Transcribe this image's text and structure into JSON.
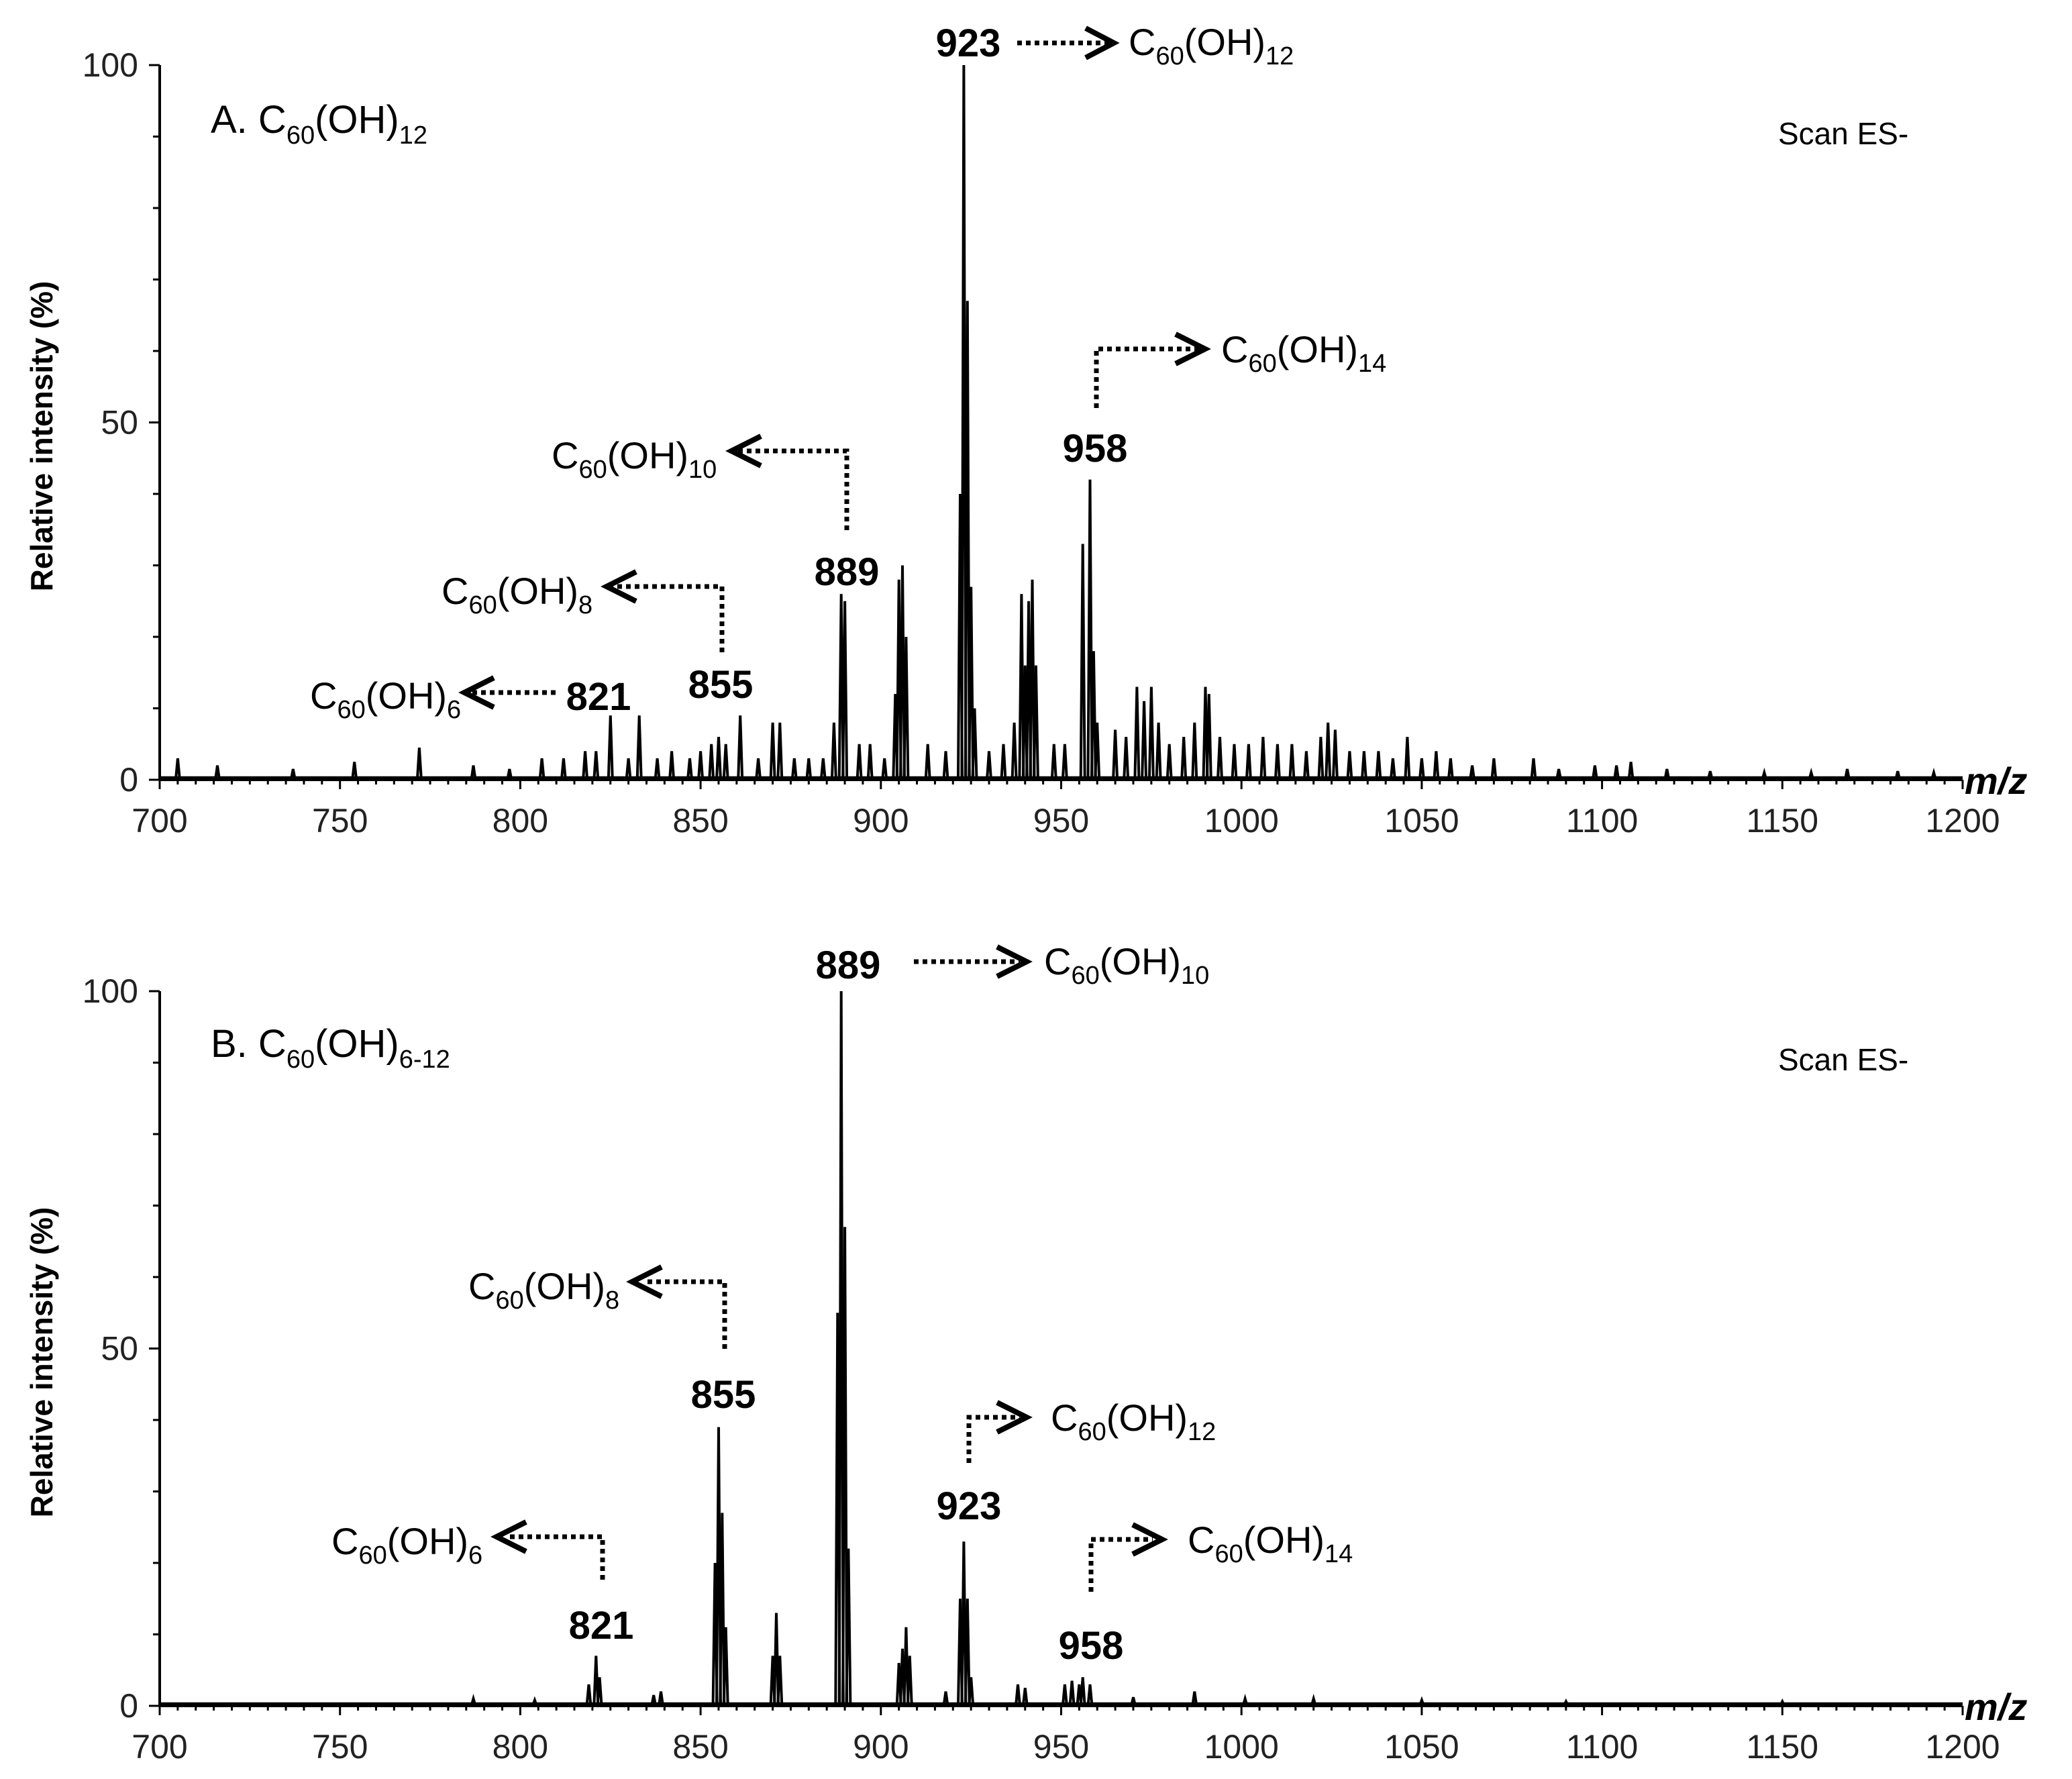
{
  "chart_data": [
    {
      "type": "line",
      "title": "A. C60(OH)12",
      "title_parts": {
        "prefix": "A. C",
        "sub1": "60",
        "mid": "(OH)",
        "sub2": "12"
      },
      "annotation": "Scan ES-",
      "xlabel": "m/z",
      "ylabel": "Relative intensity (%)",
      "xlim": [
        700,
        1200
      ],
      "ylim": [
        0,
        100
      ],
      "xticks": [
        700,
        750,
        800,
        850,
        900,
        950,
        1000,
        1050,
        1100,
        1150,
        1200
      ],
      "yticks": [
        0,
        50,
        100
      ],
      "peaks": [
        [
          705,
          3
        ],
        [
          716,
          2
        ],
        [
          737,
          1.5
        ],
        [
          754,
          2.5
        ],
        [
          772,
          4.5
        ],
        [
          787,
          2
        ],
        [
          797,
          1.5
        ],
        [
          806,
          3
        ],
        [
          812,
          3
        ],
        [
          818,
          4
        ],
        [
          821,
          4
        ],
        [
          825,
          9
        ],
        [
          830,
          3
        ],
        [
          833,
          9
        ],
        [
          838,
          3
        ],
        [
          842,
          4
        ],
        [
          847,
          3
        ],
        [
          850,
          4
        ],
        [
          853,
          5
        ],
        [
          855,
          6
        ],
        [
          857,
          5
        ],
        [
          861,
          9
        ],
        [
          866,
          3
        ],
        [
          870,
          8
        ],
        [
          872,
          8
        ],
        [
          876,
          3
        ],
        [
          880,
          3
        ],
        [
          884,
          3
        ],
        [
          887,
          8
        ],
        [
          889,
          26
        ],
        [
          890,
          25
        ],
        [
          894,
          5
        ],
        [
          897,
          5
        ],
        [
          901,
          3
        ],
        [
          904,
          12
        ],
        [
          905,
          28
        ],
        [
          906,
          30
        ],
        [
          907,
          20
        ],
        [
          913,
          5
        ],
        [
          918,
          4
        ],
        [
          922,
          40
        ],
        [
          923,
          100
        ],
        [
          924,
          67
        ],
        [
          925,
          27
        ],
        [
          926,
          10
        ],
        [
          930,
          4
        ],
        [
          934,
          5
        ],
        [
          937,
          8
        ],
        [
          939,
          26
        ],
        [
          940,
          16
        ],
        [
          941,
          25
        ],
        [
          942,
          28
        ],
        [
          943,
          16
        ],
        [
          948,
          5
        ],
        [
          951,
          5
        ],
        [
          956,
          33
        ],
        [
          958,
          42
        ],
        [
          959,
          18
        ],
        [
          960,
          8
        ],
        [
          965,
          7
        ],
        [
          968,
          6
        ],
        [
          971,
          13
        ],
        [
          973,
          11
        ],
        [
          975,
          13
        ],
        [
          977,
          8
        ],
        [
          980,
          5
        ],
        [
          984,
          6
        ],
        [
          987,
          8
        ],
        [
          990,
          13
        ],
        [
          991,
          12
        ],
        [
          994,
          6
        ],
        [
          998,
          5
        ],
        [
          1002,
          5
        ],
        [
          1006,
          6
        ],
        [
          1010,
          5
        ],
        [
          1014,
          5
        ],
        [
          1018,
          4
        ],
        [
          1022,
          6
        ],
        [
          1024,
          8
        ],
        [
          1026,
          7
        ],
        [
          1030,
          4
        ],
        [
          1034,
          4
        ],
        [
          1038,
          4
        ],
        [
          1042,
          3
        ],
        [
          1046,
          6
        ],
        [
          1050,
          3
        ],
        [
          1054,
          4
        ],
        [
          1058,
          3
        ],
        [
          1064,
          2
        ],
        [
          1070,
          3
        ],
        [
          1081,
          3
        ],
        [
          1088,
          1.5
        ],
        [
          1098,
          2
        ],
        [
          1104,
          2
        ],
        [
          1108,
          2.5
        ],
        [
          1118,
          1.5
        ],
        [
          1130,
          1.2
        ],
        [
          1145,
          1
        ],
        [
          1158,
          1
        ],
        [
          1168,
          1.5
        ],
        [
          1182,
          1.2
        ],
        [
          1192,
          1
        ]
      ],
      "peak_labels": [
        {
          "mz": 923,
          "label": "923",
          "formula_sub1": "60",
          "formula_sub2": "12"
        },
        {
          "mz": 958,
          "label": "958",
          "formula_sub1": "60",
          "formula_sub2": "14"
        },
        {
          "mz": 889,
          "label": "889",
          "formula_sub1": "60",
          "formula_sub2": "10"
        },
        {
          "mz": 855,
          "label": "855",
          "formula_sub1": "60",
          "formula_sub2": "8"
        },
        {
          "mz": 821,
          "label": "821",
          "formula_sub1": "60",
          "formula_sub2": "6"
        }
      ]
    },
    {
      "type": "line",
      "title": "B. C60(OH)6-12",
      "title_parts": {
        "prefix": "B. C",
        "sub1": "60",
        "mid": "(OH)",
        "sub2": "6-12"
      },
      "annotation": "Scan ES-",
      "xlabel": "m/z",
      "ylabel": "Relative intensity (%)",
      "xlim": [
        700,
        1200
      ],
      "ylim": [
        0,
        100
      ],
      "xticks": [
        700,
        750,
        800,
        850,
        900,
        950,
        1000,
        1050,
        1100,
        1150,
        1200
      ],
      "yticks": [
        0,
        50,
        100
      ],
      "peaks": [
        [
          787,
          1
        ],
        [
          804,
          0.8
        ],
        [
          819,
          3
        ],
        [
          821,
          7
        ],
        [
          822,
          4
        ],
        [
          837,
          1.5
        ],
        [
          839,
          2
        ],
        [
          854,
          20
        ],
        [
          855,
          39
        ],
        [
          856,
          27
        ],
        [
          857,
          11
        ],
        [
          870,
          7
        ],
        [
          871,
          13
        ],
        [
          872,
          7
        ],
        [
          888,
          55
        ],
        [
          889,
          100
        ],
        [
          890,
          67
        ],
        [
          891,
          22
        ],
        [
          905,
          6
        ],
        [
          906,
          8
        ],
        [
          907,
          11
        ],
        [
          908,
          7
        ],
        [
          918,
          2
        ],
        [
          922,
          15
        ],
        [
          923,
          23
        ],
        [
          924,
          15
        ],
        [
          925,
          4
        ],
        [
          938,
          3
        ],
        [
          940,
          2.5
        ],
        [
          951,
          3
        ],
        [
          953,
          3.5
        ],
        [
          955,
          3
        ],
        [
          956,
          4
        ],
        [
          958,
          3
        ],
        [
          970,
          1.2
        ],
        [
          987,
          2
        ],
        [
          1001,
          1
        ],
        [
          1020,
          1
        ],
        [
          1050,
          0.8
        ],
        [
          1090,
          0.6
        ],
        [
          1150,
          0.6
        ]
      ],
      "peak_labels": [
        {
          "mz": 889,
          "label": "889",
          "formula_sub1": "60",
          "formula_sub2": "10"
        },
        {
          "mz": 855,
          "label": "855",
          "formula_sub1": "60",
          "formula_sub2": "8"
        },
        {
          "mz": 923,
          "label": "923",
          "formula_sub1": "60",
          "formula_sub2": "12"
        },
        {
          "mz": 958,
          "label": "958",
          "formula_sub1": "60",
          "formula_sub2": "14"
        },
        {
          "mz": 821,
          "label": "821",
          "formula_sub1": "60",
          "formula_sub2": "6"
        }
      ]
    }
  ],
  "formula_text": {
    "c": "C",
    "oh": "(OH)"
  }
}
